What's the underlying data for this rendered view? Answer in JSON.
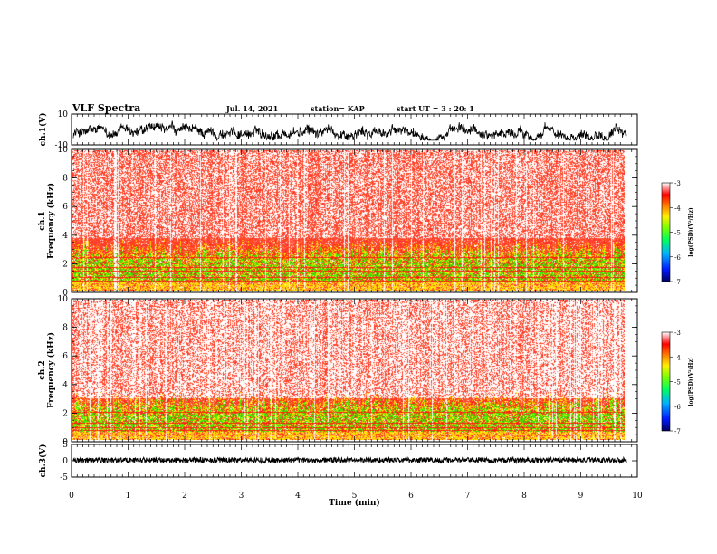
{
  "header": {
    "title": "VLF Spectra",
    "date": "Jul. 14, 2021",
    "station": "station= KAP",
    "start": "start UT = 3 : 20: 1"
  },
  "colors": {
    "trace": "#000000",
    "background": "#ffffff",
    "spectro_low_freq": "#ffe800",
    "spectro_band": "#ff2a1e",
    "spectro_mid": "#22e800",
    "spectro_high": "#ff3a30"
  },
  "chart_data": [
    {
      "type": "line",
      "panel": "ch1-waveform",
      "ylabel": "ch.1(V)",
      "ylim": [
        -10,
        10
      ],
      "yticks": [
        "10",
        "-10"
      ],
      "xlim": [
        0,
        10
      ],
      "description_series": [
        {
          "name": "ch.1",
          "values_range": [
            -7,
            6
          ]
        }
      ]
    },
    {
      "type": "heatmap",
      "panel": "ch1-spectrogram",
      "ylabel": [
        "ch.1",
        "Frequency (kHz)"
      ],
      "ylim": [
        0,
        10
      ],
      "yticks": [
        "0",
        "2",
        "4",
        "6",
        "8",
        "10"
      ],
      "xlim": [
        0,
        10
      ],
      "colorbar": {
        "label": "log(PSD)(V²/Hz)",
        "range": [
          -7,
          -3
        ],
        "ticks": [
          "-3",
          "-4",
          "-5",
          "-6",
          "-7"
        ]
      }
    },
    {
      "type": "heatmap",
      "panel": "ch2-spectrogram",
      "ylabel": [
        "ch.2",
        "Frequency (kHz)"
      ],
      "ylim": [
        0,
        10
      ],
      "yticks": [
        "0",
        "2",
        "4",
        "6",
        "8",
        "10"
      ],
      "xlim": [
        0,
        10
      ],
      "colorbar": {
        "label": "log(PSD)(V²/Hz)",
        "range": [
          -7,
          -3
        ],
        "ticks": [
          "-3",
          "-4",
          "-5",
          "-6",
          "-7"
        ]
      }
    },
    {
      "type": "line",
      "panel": "ch3-waveform",
      "ylabel": "ch.3(V)",
      "ylim": [
        -5,
        5
      ],
      "yticks": [
        "5",
        "0",
        "-5"
      ],
      "xlim": [
        0,
        10
      ],
      "xlabel": "Time (min)",
      "xticks": [
        "0",
        "1",
        "2",
        "3",
        "4",
        "5",
        "6",
        "7",
        "8",
        "9",
        "10"
      ]
    }
  ]
}
